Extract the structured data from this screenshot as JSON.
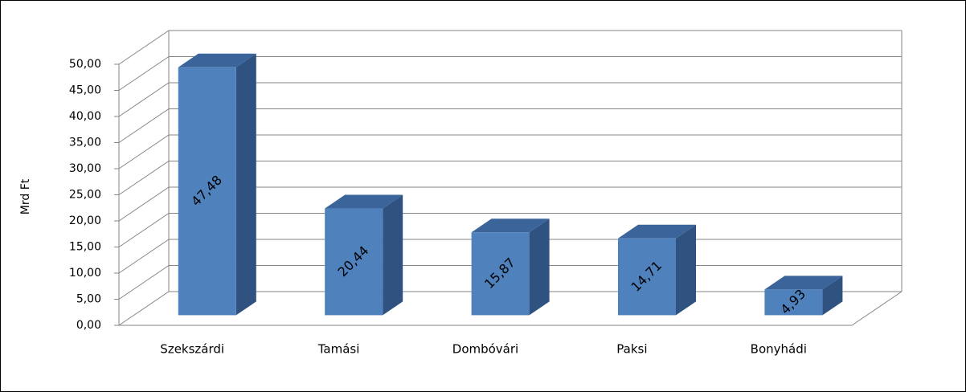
{
  "chart_data": {
    "type": "bar3d",
    "y_label": "Mrd Ft",
    "categories": [
      "Szekszárdi",
      "Tamási",
      "Dombóvári",
      "Paksi",
      "Bonyhádi"
    ],
    "values": [
      47.48,
      20.44,
      15.87,
      14.71,
      4.93
    ],
    "value_labels": [
      "47,48",
      "20,44",
      "15,87",
      "14,71",
      "4,93"
    ],
    "color": "#4f81bd",
    "ylim": [
      0,
      50
    ],
    "yticks": [
      {
        "value": 0,
        "label": "0,00"
      },
      {
        "value": 5,
        "label": "5,00"
      },
      {
        "value": 10,
        "label": "10,00"
      },
      {
        "value": 15,
        "label": "15,00"
      },
      {
        "value": 20,
        "label": "20,00"
      },
      {
        "value": 25,
        "label": "25,00"
      },
      {
        "value": 30,
        "label": "30,00"
      },
      {
        "value": 35,
        "label": "35,00"
      },
      {
        "value": 40,
        "label": "40,00"
      },
      {
        "value": 45,
        "label": "45,00"
      },
      {
        "value": 50,
        "label": "50,00"
      }
    ],
    "grid": true
  }
}
